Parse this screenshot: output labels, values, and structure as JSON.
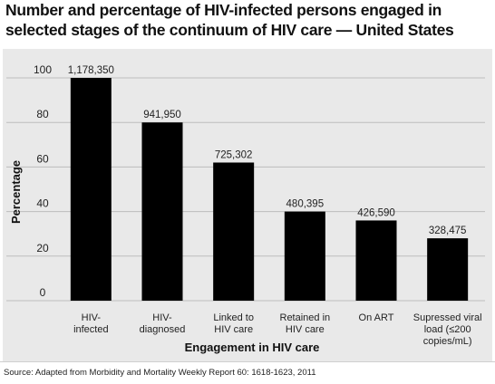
{
  "title": "Number and percentage of HIV-infected persons engaged in\nselected stages of the continuum of HIV care — United States",
  "source": "Source: Adapted from Morbidity and Mortality Weekly Report 60: 1618-1623, 2011",
  "chart_data": {
    "type": "bar",
    "title": "Number and percentage of HIV-infected persons engaged in selected stages of the continuum of HIV care — United States",
    "xlabel": "Engagement in HIV care",
    "ylabel": "Percentage",
    "ylim": [
      0,
      100
    ],
    "yticks": [
      0,
      20,
      40,
      60,
      80,
      100
    ],
    "grid": true,
    "categories": [
      [
        "HIV-",
        "infected"
      ],
      [
        "HIV-",
        "diagnosed"
      ],
      [
        "Linked to",
        "HIV care"
      ],
      [
        "Retained in",
        "HIV care"
      ],
      [
        "On ART"
      ],
      [
        "Supressed viral",
        "load (≤200",
        "copies/mL)"
      ]
    ],
    "values": [
      100,
      80,
      62,
      40,
      36,
      28
    ],
    "data_labels": [
      "1,178,350",
      "941,950",
      "725,302",
      "480,395",
      "426,590",
      "328,475"
    ],
    "colors": {
      "bar": "#000000",
      "grid": "#bdbdbd",
      "background": "#e9e9e9"
    }
  }
}
